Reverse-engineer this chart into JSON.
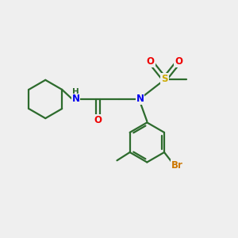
{
  "background_color": "#efefef",
  "bond_color": "#2d6b2d",
  "atom_colors": {
    "N": "#0000ee",
    "O": "#ee0000",
    "S": "#ccaa00",
    "Br": "#cc7700",
    "C": "#2d6b2d"
  },
  "bond_width": 1.6,
  "font_size": 8.5,
  "fig_size": [
    3.0,
    3.0
  ],
  "dpi": 100
}
